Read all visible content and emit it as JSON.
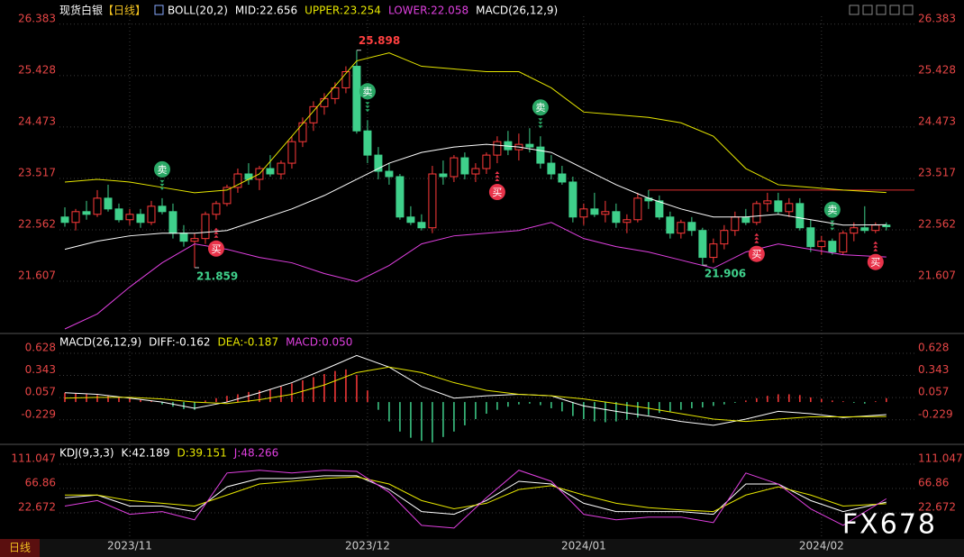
{
  "header": {
    "title": "现货白银",
    "period": "【日线】"
  },
  "chart_data": [
    {
      "type": "candlestick",
      "legend_texts": [
        {
          "text": "BOLL(20,2)",
          "color": "#ffffff"
        },
        {
          "text": "MID:22.656",
          "color": "#ffffff"
        },
        {
          "text": "UPPER:23.254",
          "color": "#e6e600"
        },
        {
          "text": "LOWER:22.058",
          "color": "#e040e0"
        },
        {
          "text": "MACD(26,12,9)",
          "color": "#ffffff"
        }
      ],
      "x": [
        0,
        1,
        2,
        3,
        4,
        5,
        6,
        7,
        8,
        9,
        10,
        11,
        12,
        13,
        14,
        15,
        16,
        17,
        18,
        19,
        20,
        21,
        22,
        23,
        24,
        25,
        26,
        27,
        28,
        29,
        30,
        31,
        32,
        33,
        34,
        35,
        36,
        37,
        38,
        39,
        40,
        41,
        42,
        43,
        44,
        45,
        46,
        47,
        48,
        49,
        50,
        51,
        52,
        53,
        54,
        55,
        56,
        57,
        58,
        59,
        60,
        61,
        62,
        63,
        64,
        65,
        66,
        67,
        68,
        69,
        70,
        71,
        72,
        73,
        74,
        75,
        76
      ],
      "open": [
        22.8,
        22.7,
        22.9,
        22.85,
        23.15,
        22.95,
        22.75,
        22.85,
        22.7,
        23.0,
        22.9,
        22.5,
        22.35,
        22.4,
        22.85,
        23.05,
        23.35,
        23.6,
        23.5,
        23.7,
        23.6,
        23.8,
        24.2,
        24.55,
        24.85,
        25.0,
        25.2,
        25.6,
        24.4,
        23.95,
        23.65,
        23.55,
        22.8,
        22.7,
        22.6,
        23.6,
        23.55,
        23.9,
        23.6,
        23.7,
        23.95,
        24.2,
        24.05,
        24.15,
        24.1,
        23.8,
        23.6,
        23.45,
        22.8,
        22.95,
        22.85,
        22.9,
        22.7,
        22.75,
        23.15,
        23.1,
        22.8,
        22.5,
        22.7,
        22.55,
        22.05,
        22.3,
        22.55,
        22.8,
        22.7,
        23.05,
        23.1,
        22.9,
        23.05,
        22.6,
        22.25,
        22.35,
        22.15,
        22.5,
        22.6,
        22.55,
        22.65
      ],
      "high": [
        22.98,
        22.95,
        23.1,
        23.3,
        23.4,
        23.05,
        22.95,
        22.95,
        23.1,
        23.15,
        23.05,
        22.65,
        22.5,
        22.9,
        23.1,
        23.4,
        23.7,
        23.8,
        23.75,
        23.95,
        23.85,
        24.3,
        24.65,
        24.95,
        25.1,
        25.3,
        25.6,
        25.898,
        24.6,
        24.1,
        23.8,
        23.6,
        23.0,
        22.85,
        23.75,
        23.85,
        23.95,
        24.0,
        23.8,
        24.0,
        24.3,
        24.4,
        24.35,
        24.45,
        24.3,
        23.95,
        23.75,
        23.55,
        23.05,
        23.25,
        23.1,
        23.05,
        22.85,
        23.25,
        23.3,
        23.2,
        22.9,
        22.75,
        22.8,
        22.6,
        22.4,
        22.65,
        22.9,
        22.95,
        23.1,
        23.25,
        23.25,
        23.15,
        23.15,
        22.75,
        22.45,
        22.4,
        22.55,
        22.7,
        23.0,
        22.7,
        22.7
      ],
      "low": [
        22.62,
        22.55,
        22.75,
        22.8,
        22.9,
        22.7,
        22.65,
        22.6,
        22.65,
        22.85,
        22.4,
        22.25,
        21.859,
        22.3,
        22.75,
        23.0,
        23.25,
        23.4,
        23.3,
        23.55,
        23.5,
        23.7,
        24.1,
        24.4,
        24.7,
        24.9,
        25.1,
        24.35,
        23.8,
        23.5,
        23.4,
        22.75,
        22.65,
        22.55,
        22.5,
        23.4,
        23.45,
        23.5,
        23.45,
        23.6,
        23.8,
        23.95,
        23.85,
        24.0,
        23.7,
        23.5,
        23.4,
        22.7,
        22.65,
        22.8,
        22.7,
        22.6,
        22.5,
        22.7,
        22.95,
        22.75,
        22.4,
        22.4,
        22.45,
        21.906,
        21.95,
        22.2,
        22.45,
        22.65,
        22.65,
        22.9,
        22.85,
        22.8,
        22.55,
        22.15,
        22.1,
        22.1,
        22.1,
        22.35,
        22.5,
        22.5,
        22.55
      ],
      "close": [
        22.7,
        22.9,
        22.85,
        23.15,
        22.95,
        22.75,
        22.85,
        22.7,
        23.0,
        22.9,
        22.5,
        22.35,
        22.4,
        22.85,
        23.05,
        23.35,
        23.6,
        23.5,
        23.7,
        23.6,
        23.8,
        24.2,
        24.55,
        24.85,
        25.0,
        25.2,
        25.5,
        24.4,
        23.95,
        23.65,
        23.55,
        22.8,
        22.7,
        22.6,
        23.6,
        23.55,
        23.9,
        23.6,
        23.7,
        23.95,
        24.2,
        24.05,
        24.15,
        24.1,
        23.8,
        23.6,
        23.45,
        22.8,
        22.95,
        22.85,
        22.9,
        22.7,
        22.75,
        23.15,
        23.1,
        22.8,
        22.5,
        22.7,
        22.55,
        22.05,
        22.3,
        22.55,
        22.8,
        22.7,
        23.05,
        23.1,
        22.9,
        23.05,
        22.6,
        22.25,
        22.35,
        22.15,
        22.5,
        22.6,
        22.55,
        22.65,
        22.62
      ],
      "up_color": "#ff3a3a",
      "down_color": "#3fd08b",
      "lines": [
        {
          "color": "#e6e600",
          "x": [
            0,
            3,
            6,
            9,
            12,
            15,
            18,
            21,
            24,
            27,
            30,
            33,
            36,
            39,
            42,
            45,
            48,
            51,
            54,
            57,
            60,
            63,
            66,
            69,
            72,
            76
          ],
          "values": [
            23.45,
            23.5,
            23.45,
            23.35,
            23.25,
            23.3,
            23.6,
            24.3,
            25.0,
            25.7,
            25.85,
            25.6,
            25.55,
            25.5,
            25.5,
            25.2,
            24.75,
            24.7,
            24.65,
            24.55,
            24.3,
            23.7,
            23.4,
            23.35,
            23.3,
            23.254
          ]
        },
        {
          "color": "#ffffff",
          "x": [
            0,
            3,
            6,
            9,
            12,
            15,
            18,
            21,
            24,
            27,
            30,
            33,
            36,
            39,
            42,
            45,
            48,
            51,
            54,
            57,
            60,
            63,
            66,
            69,
            72,
            76
          ],
          "values": [
            22.2,
            22.35,
            22.45,
            22.5,
            22.5,
            22.55,
            22.75,
            22.95,
            23.2,
            23.5,
            23.8,
            24.0,
            24.1,
            24.15,
            24.1,
            24.0,
            23.7,
            23.4,
            23.15,
            22.95,
            22.8,
            22.8,
            22.85,
            22.75,
            22.65,
            22.656
          ]
        },
        {
          "color": "#e040e0",
          "x": [
            0,
            3,
            6,
            9,
            12,
            15,
            18,
            21,
            24,
            27,
            30,
            33,
            36,
            39,
            42,
            45,
            48,
            51,
            54,
            57,
            60,
            63,
            66,
            69,
            72,
            76
          ],
          "values": [
            20.72,
            21.0,
            21.5,
            21.95,
            22.3,
            22.2,
            22.05,
            21.95,
            21.75,
            21.6,
            21.9,
            22.3,
            22.45,
            22.5,
            22.55,
            22.7,
            22.4,
            22.25,
            22.15,
            22.0,
            21.85,
            22.15,
            22.3,
            22.2,
            22.1,
            22.058
          ]
        }
      ],
      "xlim": [
        -0.5,
        78.6
      ],
      "ylim": [
        20.67,
        26.53
      ],
      "yticks": [
        21.607,
        22.562,
        23.517,
        24.473,
        25.428,
        26.383
      ],
      "xticks": [
        {
          "value": 6,
          "label": "2023/11"
        },
        {
          "value": 28,
          "label": "2023/12"
        },
        {
          "value": 48,
          "label": "2024/01"
        },
        {
          "value": 70,
          "label": "2024/02"
        }
      ],
      "annotations": [
        {
          "x": 12,
          "value": 21.859
        },
        {
          "x": 27,
          "value": 25.898
        },
        {
          "x": 59,
          "value": 21.906
        }
      ],
      "signals": [
        {
          "x": 9,
          "text": "卖"
        },
        {
          "x": 14,
          "text": "买"
        },
        {
          "x": 28,
          "text": "卖"
        },
        {
          "x": 40,
          "text": "买"
        },
        {
          "x": 44,
          "text": "卖"
        },
        {
          "x": 64,
          "text": "买"
        },
        {
          "x": 71,
          "text": "卖"
        },
        {
          "x": 75,
          "text": "买"
        }
      ],
      "hline": {
        "value": 23.3,
        "x_from": 54,
        "color": "#e03030"
      }
    },
    {
      "type": "macd",
      "legend_texts": [
        {
          "text": "MACD(26,12,9)",
          "color": "#ffffff"
        },
        {
          "text": "DIFF:-0.162",
          "color": "#ffffff"
        },
        {
          "text": "DEA:-0.187",
          "color": "#e6e600"
        },
        {
          "text": "MACD:0.050",
          "color": "#e040e0"
        }
      ],
      "x": [
        0,
        3,
        6,
        9,
        12,
        15,
        18,
        21,
        24,
        27,
        30,
        33,
        36,
        39,
        42,
        45,
        48,
        51,
        54,
        57,
        60,
        63,
        66,
        69,
        72,
        76
      ],
      "series": [
        {
          "color": "#ffffff",
          "values": [
            0.12,
            0.1,
            0.05,
            0.0,
            -0.08,
            0.0,
            0.12,
            0.25,
            0.42,
            0.6,
            0.45,
            0.2,
            0.05,
            0.08,
            0.1,
            0.08,
            -0.05,
            -0.12,
            -0.18,
            -0.25,
            -0.3,
            -0.22,
            -0.12,
            -0.15,
            -0.2,
            -0.162
          ]
        },
        {
          "color": "#e6e600",
          "values": [
            0.05,
            0.06,
            0.06,
            0.04,
            0.0,
            -0.02,
            0.03,
            0.1,
            0.22,
            0.38,
            0.45,
            0.38,
            0.25,
            0.15,
            0.1,
            0.08,
            0.04,
            -0.02,
            -0.08,
            -0.15,
            -0.22,
            -0.25,
            -0.22,
            -0.19,
            -0.19,
            -0.187
          ]
        }
      ],
      "histogram": {
        "up_color": "#ff3a3a",
        "down_color": "#3fd08b",
        "values": [
          0.12,
          0.11,
          0.1,
          0.09,
          0.08,
          0.06,
          0.05,
          0.03,
          0.02,
          -0.03,
          -0.06,
          -0.09,
          -0.1,
          0.02,
          0.05,
          0.08,
          0.1,
          0.13,
          0.15,
          0.17,
          0.2,
          0.24,
          0.28,
          0.32,
          0.36,
          0.4,
          0.42,
          0.35,
          0.15,
          -0.1,
          -0.25,
          -0.38,
          -0.46,
          -0.5,
          -0.52,
          -0.45,
          -0.38,
          -0.3,
          -0.22,
          -0.15,
          -0.1,
          -0.06,
          -0.03,
          -0.02,
          -0.04,
          -0.08,
          -0.12,
          -0.18,
          -0.22,
          -0.25,
          -0.26,
          -0.25,
          -0.23,
          -0.2,
          -0.17,
          -0.14,
          -0.12,
          -0.1,
          -0.08,
          -0.07,
          -0.05,
          -0.03,
          -0.01,
          0.02,
          0.05,
          0.08,
          0.1,
          0.1,
          0.09,
          0.06,
          0.04,
          0.02,
          0.01,
          -0.01,
          -0.02,
          0.01,
          0.05
        ]
      },
      "ylim": [
        -0.51,
        0.86
      ],
      "yticks": [
        -0.229,
        0.057,
        0.343,
        0.628
      ]
    },
    {
      "type": "kdj",
      "legend_texts": [
        {
          "text": "KDJ(9,3,3)",
          "color": "#ffffff"
        },
        {
          "text": "K:42.189",
          "color": "#ffffff"
        },
        {
          "text": "D:39.151",
          "color": "#e6e600"
        },
        {
          "text": "J:48.266",
          "color": "#e040e0"
        }
      ],
      "x": [
        0,
        3,
        6,
        9,
        12,
        15,
        18,
        21,
        24,
        27,
        30,
        33,
        36,
        39,
        42,
        45,
        48,
        51,
        54,
        57,
        60,
        63,
        66,
        69,
        72,
        76
      ],
      "series": [
        {
          "color": "#ffffff",
          "values": [
            50,
            55,
            35,
            35,
            25,
            70,
            85,
            85,
            90,
            90,
            65,
            25,
            20,
            45,
            80,
            75,
            40,
            25,
            25,
            25,
            20,
            75,
            75,
            45,
            25,
            42.189
          ]
        },
        {
          "color": "#e6e600",
          "values": [
            55,
            55,
            45,
            40,
            35,
            55,
            75,
            80,
            85,
            88,
            75,
            45,
            30,
            40,
            65,
            72,
            55,
            40,
            32,
            28,
            25,
            55,
            70,
            55,
            35,
            39.151
          ]
        },
        {
          "color": "#e040e0",
          "values": [
            35,
            45,
            20,
            25,
            10,
            95,
            100,
            95,
            100,
            98,
            60,
            0,
            -5,
            50,
            100,
            80,
            20,
            10,
            15,
            15,
            5,
            95,
            75,
            30,
            0,
            48.266
          ]
        }
      ],
      "ylim": [
        -21.5,
        140.5
      ],
      "yticks": [
        22.672,
        66.86,
        111.047
      ]
    }
  ],
  "footer": {
    "period_button": "日线",
    "watermark": "FX678"
  }
}
